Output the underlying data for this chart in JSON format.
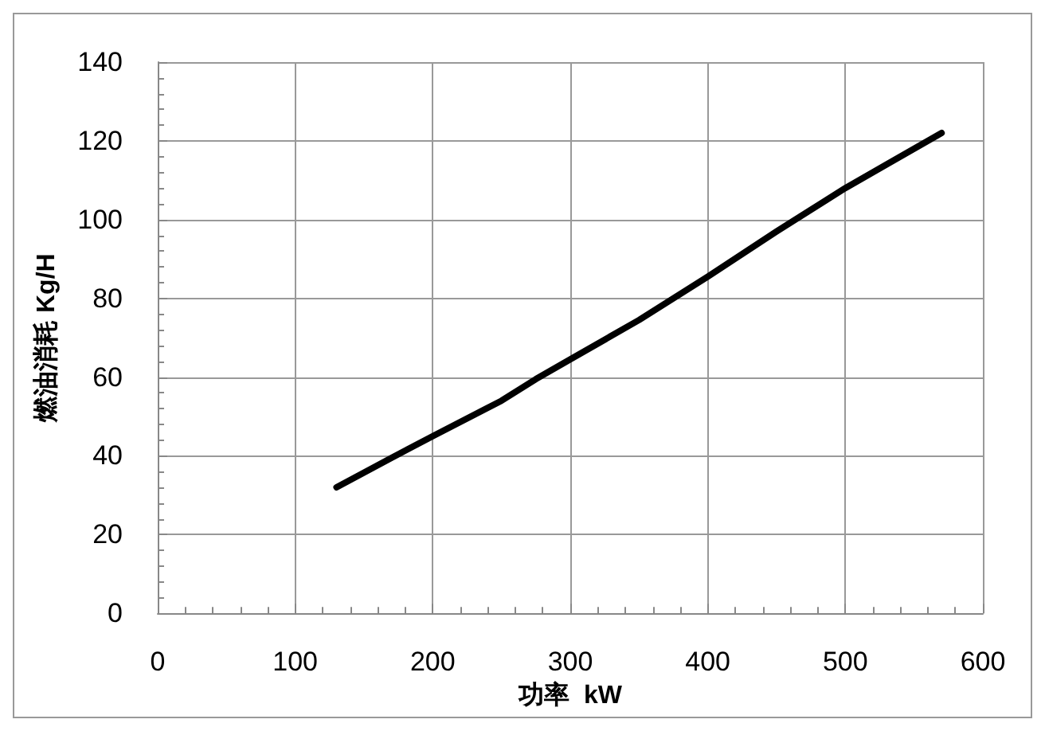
{
  "chart_data": {
    "type": "line",
    "xlabel": "功率  kW",
    "ylabel": "燃油消耗 Kg/H",
    "x": [
      130,
      170,
      200,
      250,
      275,
      300,
      350,
      400,
      450,
      500,
      530,
      570
    ],
    "series": [
      {
        "color": "#000000",
        "values": [
          32,
          39.5,
          45,
          54,
          59.5,
          64.5,
          74.5,
          85.5,
          97,
          108,
          114,
          122
        ]
      }
    ],
    "xlim": [
      0,
      600
    ],
    "xticks": [
      0,
      100,
      200,
      300,
      400,
      500,
      600
    ],
    "ylim": [
      0,
      140
    ],
    "yticks": [
      0,
      20,
      40,
      60,
      80,
      100,
      120,
      140
    ],
    "grid": true,
    "marker": "none",
    "line_style": "solid"
  }
}
